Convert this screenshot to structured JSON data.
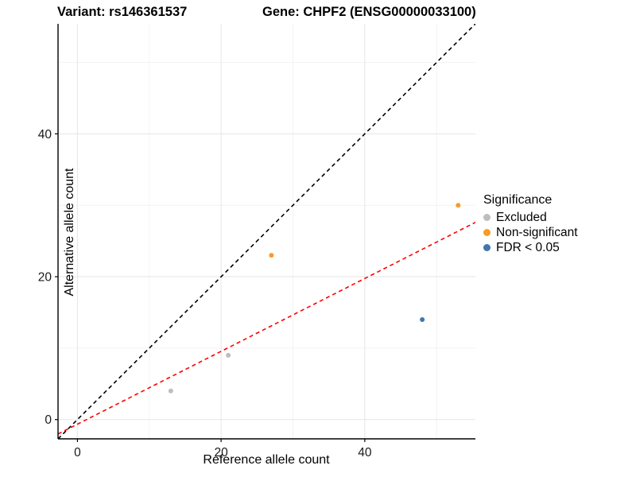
{
  "titles": {
    "left": "Variant: rs146361537",
    "right": "Gene: CHPF2 (ENSG00000033100)"
  },
  "axes": {
    "x_label": "Reference allele count",
    "y_label": "Alternative allele count"
  },
  "legend": {
    "title": "Significance",
    "items": [
      {
        "label": "Excluded",
        "color": "#BEBEBE"
      },
      {
        "label": "Non-significant",
        "color": "#F89C27"
      },
      {
        "label": "FDR < 0.05",
        "color": "#4077AC"
      }
    ]
  },
  "colors": {
    "background": "#FFFFFF",
    "axis_line": "#000000",
    "tick_text": "#1A1A1A",
    "grid_major": "#E6E6E6",
    "grid_minor": "#F3F3F3",
    "identity_line": "#000000",
    "fit_line": "#FF0000"
  },
  "chart_data": {
    "type": "scatter",
    "title": "Variant: rs146361537 / Gene: CHPF2 (ENSG00000033100)",
    "xlabel": "Reference allele count",
    "ylabel": "Alternative allele count",
    "xlim": [
      -2.7,
      55.4
    ],
    "ylim": [
      -2.7,
      55.4
    ],
    "x_ticks": [
      0,
      20,
      40
    ],
    "y_ticks": [
      0,
      20,
      40
    ],
    "x_minor_ticks": [
      10,
      30,
      50
    ],
    "y_minor_ticks": [
      10,
      30,
      50
    ],
    "grid": true,
    "legend_position": "right",
    "series": [
      {
        "name": "Excluded",
        "color": "#BEBEBE",
        "points": [
          [
            13,
            4
          ],
          [
            21,
            9
          ]
        ]
      },
      {
        "name": "Non-significant",
        "color": "#F89C27",
        "points": [
          [
            27,
            23
          ],
          [
            53,
            30
          ]
        ]
      },
      {
        "name": "FDR < 0.05",
        "color": "#4077AC",
        "points": [
          [
            48,
            14
          ]
        ]
      }
    ],
    "lines": [
      {
        "name": "identity",
        "slope": 1.0,
        "intercept": 0.0,
        "color": "#000000",
        "dashed": true
      },
      {
        "name": "fit",
        "slope": 0.51,
        "intercept": -0.65,
        "color": "#FF0000",
        "dashed": true
      }
    ]
  }
}
